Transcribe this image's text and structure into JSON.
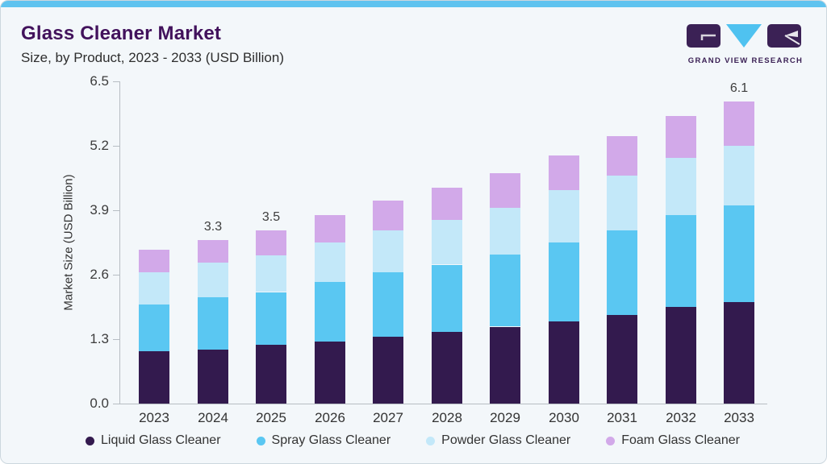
{
  "header": {
    "title": "Glass Cleaner Market",
    "subtitle": "Size, by Product, 2023 - 2033 (USD Billion)",
    "brand": "GRAND VIEW RESEARCH"
  },
  "chart_data": {
    "type": "bar",
    "stacked": true,
    "title": "Glass Cleaner Market Size, by Product, 2023 - 2033 (USD Billion)",
    "xlabel": "",
    "ylabel": "Market Size (USD Billion)",
    "categories": [
      "2023",
      "2024",
      "2025",
      "2026",
      "2027",
      "2028",
      "2029",
      "2030",
      "2031",
      "2032",
      "2033"
    ],
    "yticks": [
      "0.0",
      "1.3",
      "2.6",
      "3.9",
      "5.2",
      "6.5"
    ],
    "ylim": [
      0,
      6.5
    ],
    "grid": false,
    "legend_position": "bottom",
    "series": [
      {
        "name": "Liquid Glass Cleaner",
        "color": "#331a4e",
        "values": [
          1.05,
          1.1,
          1.2,
          1.25,
          1.35,
          1.45,
          1.55,
          1.65,
          1.8,
          1.95,
          2.05
        ]
      },
      {
        "name": "Spray Glass Cleaner",
        "color": "#5ac7f2",
        "values": [
          0.95,
          1.05,
          1.05,
          1.2,
          1.3,
          1.35,
          1.45,
          1.6,
          1.7,
          1.85,
          1.95
        ]
      },
      {
        "name": "Powder Glass Cleaner",
        "color": "#c3e8f9",
        "values": [
          0.65,
          0.7,
          0.75,
          0.8,
          0.85,
          0.9,
          0.95,
          1.05,
          1.1,
          1.15,
          1.2
        ]
      },
      {
        "name": "Foam Glass Cleaner",
        "color": "#d2a9e9",
        "values": [
          0.45,
          0.45,
          0.5,
          0.55,
          0.6,
          0.65,
          0.7,
          0.7,
          0.8,
          0.85,
          0.9
        ]
      }
    ],
    "totals": [
      3.1,
      3.3,
      3.5,
      3.8,
      4.1,
      4.35,
      4.65,
      5.0,
      5.4,
      5.8,
      6.1
    ],
    "bar_labels": {
      "2024": "3.3",
      "2025": "3.5",
      "2033": "6.1"
    }
  },
  "colors": {
    "card_background": "#f3f7fa",
    "card_border": "#ccd7de",
    "top_strip": "#5fc3ef",
    "title": "#42125c",
    "axis_line": "#b7bdc3",
    "axis_text": "#3d3d3d",
    "brand_purple": "#3b2155",
    "logo_triangle": "#4fc2f0"
  }
}
